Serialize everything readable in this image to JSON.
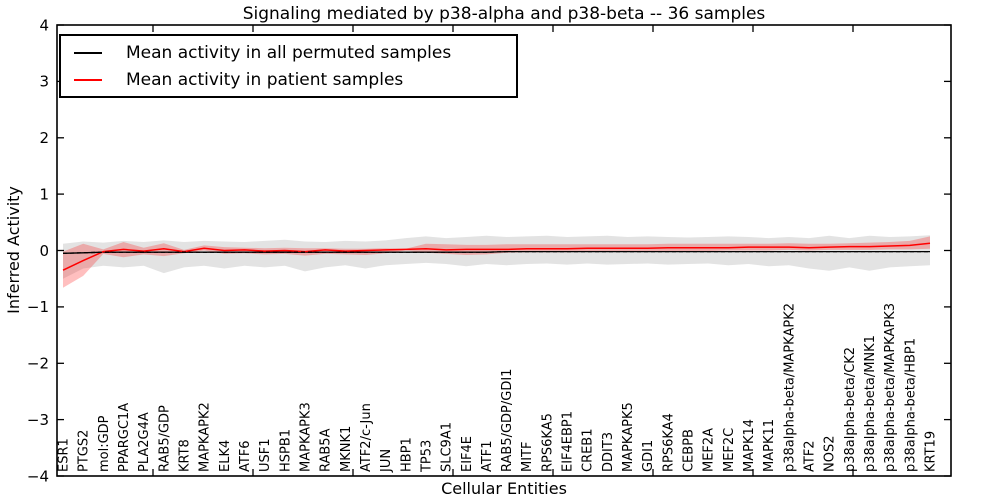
{
  "chart_data": {
    "type": "line",
    "title": "Signaling mediated by p38-alpha and p38-beta -- 36 samples",
    "xlabel": "Cellular Entities",
    "ylabel": "Inferred Activity",
    "ylim": [
      -4,
      4
    ],
    "yticks": [
      4,
      3,
      2,
      1,
      0,
      -1,
      -2,
      -3,
      -4
    ],
    "ytick_labels": [
      "4",
      "3",
      "2",
      "1",
      "0",
      "−1",
      "−2",
      "−3",
      "−4"
    ],
    "grid": false,
    "legend_position": "upper left",
    "background_color": "#ffffff",
    "categories": [
      "ESR1",
      "PTGS2",
      "mol:GDP",
      "PPARGC1A",
      "PLA2G4A",
      "RAB5/GDP",
      "KRT8",
      "MAPKAPK2",
      "ELK4",
      "ATF6",
      "USF1",
      "HSPB1",
      "MAPKAPK3",
      "RAB5A",
      "MKNK1",
      "ATF2/c-Jun",
      "JUN",
      "HBP1",
      "TP53",
      "SLC9A1",
      "EIF4E",
      "ATF1",
      "RAB5/GDP/GDI1",
      "MITF",
      "RPS6KA5",
      "EIF4EBP1",
      "CREB1",
      "DDIT3",
      "MAPKAPK5",
      "GDI1",
      "RPS6KA4",
      "CEBPB",
      "MEF2A",
      "MEF2C",
      "MAPK14",
      "MAPK11",
      "p38alpha-beta/MAPKAPK2",
      "ATF2",
      "NOS2",
      "p38alpha-beta/CK2",
      "p38alpha-beta/MNK1",
      "p38alpha-beta/MAPKAPK3",
      "p38alpha-beta/HBP1",
      "KRT19"
    ],
    "series": [
      {
        "name": "Mean activity in all permuted samples",
        "color": "#000000",
        "band_color": "#999999",
        "values": [
          -0.05,
          -0.04,
          -0.03,
          -0.03,
          -0.03,
          -0.03,
          -0.03,
          -0.03,
          -0.03,
          -0.03,
          -0.03,
          -0.03,
          -0.03,
          -0.03,
          -0.03,
          -0.03,
          -0.03,
          -0.03,
          -0.03,
          -0.03,
          -0.03,
          -0.03,
          -0.02,
          -0.02,
          -0.02,
          -0.02,
          -0.02,
          -0.02,
          -0.02,
          -0.02,
          -0.02,
          -0.02,
          -0.02,
          -0.02,
          -0.02,
          -0.02,
          -0.02,
          -0.02,
          -0.02,
          -0.02,
          -0.02,
          -0.02,
          -0.02,
          -0.02
        ],
        "band_upper": [
          0.12,
          0.16,
          0.14,
          0.17,
          0.15,
          0.18,
          0.15,
          0.17,
          0.16,
          0.15,
          0.17,
          0.19,
          0.16,
          0.15,
          0.17,
          0.16,
          0.18,
          0.22,
          0.25,
          0.22,
          0.24,
          0.26,
          0.24,
          0.25,
          0.26,
          0.24,
          0.25,
          0.26,
          0.24,
          0.25,
          0.24,
          0.23,
          0.24,
          0.25,
          0.24,
          0.22,
          0.24,
          0.22,
          0.26,
          0.22,
          0.26,
          0.24,
          0.25,
          0.27
        ],
        "band_lower": [
          -0.5,
          -0.32,
          -0.27,
          -0.3,
          -0.27,
          -0.4,
          -0.3,
          -0.27,
          -0.32,
          -0.27,
          -0.3,
          -0.27,
          -0.37,
          -0.3,
          -0.26,
          -0.32,
          -0.26,
          -0.24,
          -0.22,
          -0.24,
          -0.28,
          -0.24,
          -0.26,
          -0.24,
          -0.23,
          -0.25,
          -0.23,
          -0.25,
          -0.24,
          -0.23,
          -0.25,
          -0.24,
          -0.23,
          -0.26,
          -0.24,
          -0.28,
          -0.26,
          -0.32,
          -0.36,
          -0.3,
          -0.36,
          -0.3,
          -0.28,
          -0.26
        ]
      },
      {
        "name": "Mean activity in patient samples",
        "color": "#ff0000",
        "band_color": "#ff0000",
        "values": [
          -0.35,
          -0.18,
          -0.02,
          0.02,
          -0.01,
          0.03,
          -0.02,
          0.04,
          0.0,
          0.01,
          -0.01,
          0.0,
          -0.02,
          0.01,
          -0.01,
          0.0,
          0.01,
          0.02,
          0.03,
          0.01,
          0.02,
          0.02,
          0.02,
          0.03,
          0.03,
          0.03,
          0.04,
          0.04,
          0.04,
          0.04,
          0.05,
          0.05,
          0.05,
          0.05,
          0.06,
          0.06,
          0.06,
          0.05,
          0.06,
          0.07,
          0.07,
          0.08,
          0.09,
          0.13
        ],
        "band_upper": [
          -0.02,
          0.12,
          0.02,
          0.15,
          0.05,
          0.13,
          0.01,
          0.09,
          0.06,
          0.05,
          0.04,
          0.05,
          0.04,
          0.04,
          0.03,
          0.03,
          0.04,
          0.03,
          0.12,
          0.11,
          0.1,
          0.1,
          0.11,
          0.11,
          0.11,
          0.11,
          0.11,
          0.11,
          0.11,
          0.11,
          0.12,
          0.12,
          0.12,
          0.12,
          0.12,
          0.12,
          0.13,
          0.12,
          0.12,
          0.13,
          0.14,
          0.15,
          0.17,
          0.25
        ],
        "band_lower": [
          -0.66,
          -0.45,
          -0.06,
          -0.12,
          -0.07,
          -0.1,
          -0.05,
          0.0,
          -0.06,
          -0.05,
          -0.07,
          -0.06,
          -0.09,
          -0.06,
          -0.07,
          -0.08,
          -0.05,
          0.0,
          -0.04,
          -0.06,
          -0.08,
          -0.07,
          -0.04,
          -0.03,
          -0.03,
          -0.03,
          -0.02,
          -0.02,
          -0.02,
          -0.02,
          -0.01,
          -0.01,
          -0.01,
          0.0,
          0.0,
          0.0,
          0.01,
          0.0,
          0.01,
          0.01,
          0.01,
          0.02,
          0.02,
          0.03
        ]
      }
    ]
  }
}
